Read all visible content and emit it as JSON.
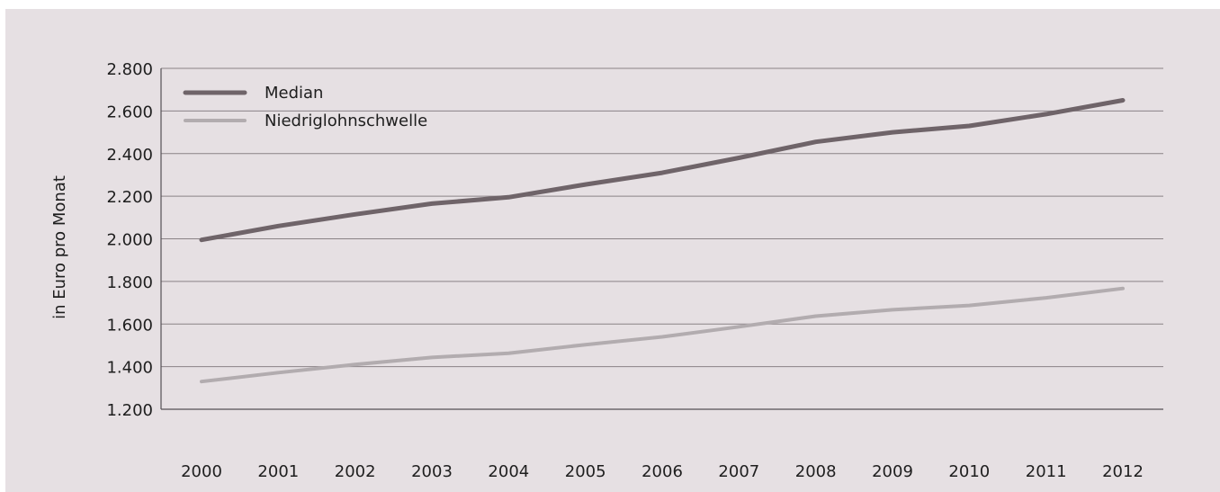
{
  "chart_data": {
    "type": "line",
    "xlabel": "",
    "ylabel": "in Euro pro Monat",
    "x": [
      "2000",
      "2001",
      "2002",
      "2003",
      "2004",
      "2005",
      "2006",
      "2007",
      "2008",
      "2009",
      "2010",
      "2011",
      "2012"
    ],
    "ylim": [
      1200,
      2800
    ],
    "yticks": [
      1200,
      1400,
      1600,
      1800,
      2000,
      2200,
      2400,
      2600,
      2800
    ],
    "ytick_labels": [
      "1.200",
      "1.400",
      "1.600",
      "1.800",
      "2.000",
      "2.200",
      "2.400",
      "2.600",
      "2.800"
    ],
    "grid": "horizontal",
    "legend_position": "top-left",
    "series": [
      {
        "name": "Median",
        "color": "#6f6469",
        "values": [
          1995,
          2060,
          2115,
          2165,
          2195,
          2255,
          2310,
          2380,
          2455,
          2500,
          2530,
          2585,
          2650
        ]
      },
      {
        "name": "Niedriglohnschwelle",
        "color": "#b2acaf",
        "values": [
          1330,
          1372,
          1410,
          1443,
          1463,
          1503,
          1540,
          1587,
          1637,
          1667,
          1687,
          1723,
          1767
        ]
      }
    ],
    "colors": {
      "background": "#e6e0e3",
      "gridline": "#8a8286",
      "axis": "#555055",
      "text": "#1e1e1e"
    }
  }
}
